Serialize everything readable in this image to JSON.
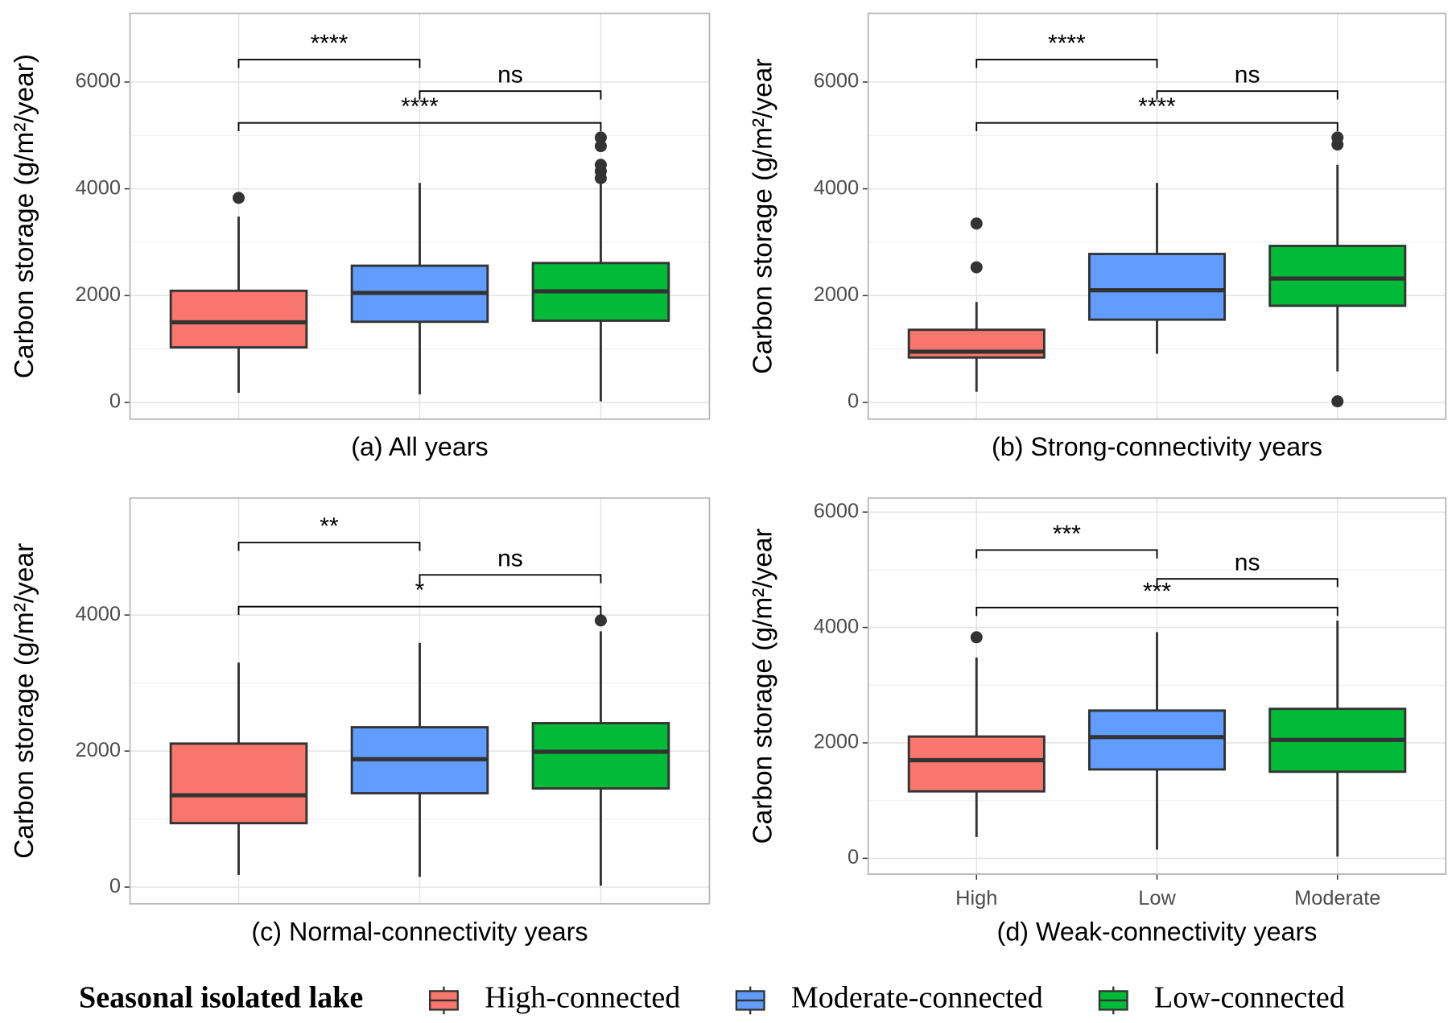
{
  "chart_data": [
    {
      "type": "box",
      "title": "(a) All years",
      "ylabel": "Carbon storage (g/m²/year)",
      "categories": [
        null,
        null,
        null
      ],
      "ylim": [
        -313,
        7287
      ],
      "yticks": [
        0,
        2000,
        4000,
        6000
      ],
      "grid": true,
      "boxes": [
        {
          "color": "#F8766D",
          "low": 180,
          "q1": 1030,
          "median": 1500,
          "q3": 2090,
          "high": 3480,
          "outliers": [
            3830
          ]
        },
        {
          "color": "#619CFF",
          "low": 150,
          "q1": 1510,
          "median": 2050,
          "q3": 2560,
          "high": 4110,
          "outliers": []
        },
        {
          "color": "#00BA38",
          "low": 20,
          "q1": 1530,
          "median": 2080,
          "q3": 2610,
          "high": 4150,
          "outliers": [
            4200,
            4330,
            4450,
            4800,
            4960
          ]
        }
      ],
      "annotations": [
        {
          "groups": [
            0,
            1
          ],
          "y": 6420,
          "label": "****"
        },
        {
          "groups": [
            1,
            2
          ],
          "y": 5830,
          "label": "ns"
        },
        {
          "groups": [
            0,
            2
          ],
          "y": 5235,
          "label": "****"
        }
      ]
    },
    {
      "type": "box",
      "title": "(b) Strong-connectivity years",
      "ylabel": "Carbon storage (g/m²/year",
      "categories": [
        null,
        null,
        null
      ],
      "ylim": [
        -313,
        7287
      ],
      "yticks": [
        0,
        2000,
        4000,
        6000
      ],
      "grid": true,
      "boxes": [
        {
          "color": "#F8766D",
          "low": 200,
          "q1": 840,
          "median": 950,
          "q3": 1360,
          "high": 1880,
          "outliers": [
            2530,
            3350
          ]
        },
        {
          "color": "#619CFF",
          "low": 910,
          "q1": 1550,
          "median": 2100,
          "q3": 2780,
          "high": 4110,
          "outliers": []
        },
        {
          "color": "#00BA38",
          "low": 580,
          "q1": 1810,
          "median": 2320,
          "q3": 2930,
          "high": 4450,
          "outliers": [
            20,
            4830,
            4960
          ]
        }
      ],
      "annotations": [
        {
          "groups": [
            0,
            1
          ],
          "y": 6420,
          "label": "****"
        },
        {
          "groups": [
            1,
            2
          ],
          "y": 5830,
          "label": "ns"
        },
        {
          "groups": [
            0,
            2
          ],
          "y": 5235,
          "label": "****"
        }
      ]
    },
    {
      "type": "box",
      "title": "(c) Normal-connectivity years",
      "ylabel": "Carbon storage (g/m²/year",
      "categories": [
        null,
        null,
        null
      ],
      "ylim": [
        -246,
        5720
      ],
      "yticks": [
        0,
        2000,
        4000
      ],
      "grid": true,
      "boxes": [
        {
          "color": "#F8766D",
          "low": 180,
          "q1": 940,
          "median": 1350,
          "q3": 2110,
          "high": 3300,
          "outliers": []
        },
        {
          "color": "#619CFF",
          "low": 150,
          "q1": 1380,
          "median": 1880,
          "q3": 2350,
          "high": 3590,
          "outliers": []
        },
        {
          "color": "#00BA38",
          "low": 20,
          "q1": 1450,
          "median": 1990,
          "q3": 2410,
          "high": 3760,
          "outliers": [
            3920
          ]
        }
      ],
      "annotations": [
        {
          "groups": [
            0,
            1
          ],
          "y": 5065,
          "label": "**"
        },
        {
          "groups": [
            1,
            2
          ],
          "y": 4590,
          "label": "ns"
        },
        {
          "groups": [
            0,
            2
          ],
          "y": 4123,
          "label": "*"
        }
      ]
    },
    {
      "type": "box",
      "title": "(d) Weak-connectivity years",
      "ylabel": "Carbon storage (g/m²/year",
      "categories": [
        "High",
        "Low",
        "Moderate"
      ],
      "ylim": [
        -274,
        6243
      ],
      "yticks": [
        0,
        2000,
        4000,
        6000
      ],
      "grid": true,
      "boxes": [
        {
          "color": "#F8766D",
          "low": 370,
          "q1": 1160,
          "median": 1700,
          "q3": 2110,
          "high": 3480,
          "outliers": [
            3830
          ]
        },
        {
          "color": "#619CFF",
          "low": 150,
          "q1": 1540,
          "median": 2100,
          "q3": 2560,
          "high": 3920,
          "outliers": []
        },
        {
          "color": "#00BA38",
          "low": 30,
          "q1": 1500,
          "median": 2050,
          "q3": 2590,
          "high": 4120,
          "outliers": []
        }
      ],
      "annotations": [
        {
          "groups": [
            0,
            1
          ],
          "y": 5342,
          "label": "***"
        },
        {
          "groups": [
            1,
            2
          ],
          "y": 4843,
          "label": "ns"
        },
        {
          "groups": [
            0,
            2
          ],
          "y": 4345,
          "label": "***"
        }
      ]
    }
  ],
  "legend": {
    "title": "Seasonal isolated lake",
    "items": [
      {
        "name": "High-connected",
        "color": "#F8766D"
      },
      {
        "name": "Moderate-connected",
        "color": "#619CFF"
      },
      {
        "name": "Low-connected",
        "color": "#00BA38"
      }
    ]
  }
}
